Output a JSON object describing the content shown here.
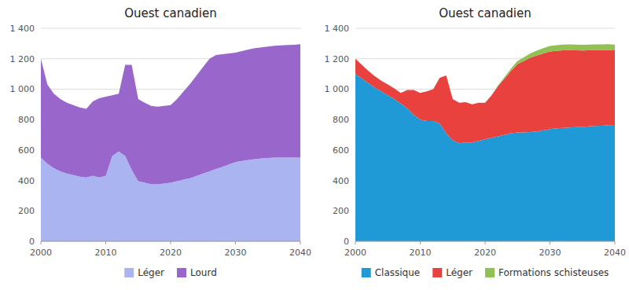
{
  "chart_data": [
    {
      "type": "area",
      "stacked": true,
      "title": "Ouest canadien",
      "x": [
        2000,
        2001,
        2002,
        2003,
        2004,
        2005,
        2006,
        2007,
        2008,
        2009,
        2010,
        2011,
        2012,
        2013,
        2014,
        2015,
        2016,
        2017,
        2018,
        2019,
        2020,
        2021,
        2022,
        2023,
        2024,
        2025,
        2026,
        2027,
        2028,
        2029,
        2030,
        2031,
        2032,
        2033,
        2034,
        2035,
        2036,
        2037,
        2038,
        2039,
        2040
      ],
      "series": [
        {
          "name": "Léger",
          "color": "#aab4f0",
          "values": [
            550,
            510,
            480,
            460,
            445,
            435,
            425,
            420,
            430,
            420,
            430,
            560,
            590,
            560,
            470,
            395,
            385,
            375,
            375,
            380,
            385,
            395,
            405,
            415,
            430,
            445,
            460,
            475,
            490,
            505,
            520,
            528,
            535,
            540,
            545,
            548,
            550,
            550,
            550,
            550,
            550
          ]
        },
        {
          "name": "Lourd",
          "color": "#9966cc",
          "values": [
            650,
            520,
            490,
            475,
            465,
            460,
            455,
            450,
            490,
            520,
            520,
            400,
            380,
            600,
            690,
            540,
            525,
            515,
            510,
            510,
            510,
            540,
            580,
            620,
            660,
            700,
            740,
            750,
            740,
            730,
            720,
            722,
            725,
            730,
            730,
            732,
            735,
            738,
            740,
            742,
            745
          ]
        }
      ],
      "xlim": [
        2000,
        2040
      ],
      "xticks": [
        2000,
        2010,
        2020,
        2030,
        2040
      ],
      "ylim": [
        0,
        1400
      ],
      "yticks": [
        0,
        200,
        400,
        600,
        800,
        {
          "value": 1000,
          "label": "1 000"
        },
        {
          "value": 1200,
          "label": "1 200"
        },
        {
          "value": 1400,
          "label": "1 400"
        }
      ],
      "grid": true,
      "legend": "bottom"
    },
    {
      "type": "area",
      "stacked": true,
      "title": "Ouest canadien",
      "x": [
        2000,
        2001,
        2002,
        2003,
        2004,
        2005,
        2006,
        2007,
        2008,
        2009,
        2010,
        2011,
        2012,
        2013,
        2014,
        2015,
        2016,
        2017,
        2018,
        2019,
        2020,
        2021,
        2022,
        2023,
        2024,
        2025,
        2026,
        2027,
        2028,
        2029,
        2030,
        2031,
        2032,
        2033,
        2034,
        2035,
        2036,
        2037,
        2038,
        2039,
        2040
      ],
      "series": [
        {
          "name": "Classique",
          "color": "#1f9ad6",
          "values": [
            1100,
            1070,
            1040,
            1010,
            985,
            960,
            935,
            905,
            875,
            830,
            800,
            790,
            790,
            775,
            710,
            665,
            645,
            650,
            650,
            660,
            670,
            680,
            690,
            700,
            710,
            715,
            715,
            718,
            722,
            730,
            738,
            742,
            745,
            748,
            750,
            752,
            755,
            758,
            760,
            763,
            765
          ]
        },
        {
          "name": "Léger",
          "color": "#e8413e",
          "values": [
            100,
            90,
            80,
            75,
            70,
            70,
            70,
            70,
            120,
            165,
            175,
            195,
            210,
            300,
            380,
            270,
            265,
            265,
            250,
            250,
            240,
            280,
            330,
            370,
            410,
            450,
            470,
            490,
            500,
            505,
            510,
            510,
            510,
            508,
            505,
            502,
            500,
            498,
            496,
            494,
            490
          ]
        },
        {
          "name": "Formations schisteuses",
          "color": "#92c153",
          "values": [
            0,
            0,
            0,
            0,
            0,
            0,
            0,
            0,
            0,
            0,
            0,
            0,
            0,
            0,
            0,
            0,
            0,
            0,
            0,
            0,
            0,
            0,
            5,
            10,
            15,
            20,
            25,
            28,
            32,
            34,
            36,
            37,
            38,
            38,
            38,
            38,
            38,
            38,
            38,
            38,
            38
          ]
        }
      ],
      "xlim": [
        2000,
        2040
      ],
      "xticks": [
        2000,
        2010,
        2020,
        2030,
        2040
      ],
      "ylim": [
        0,
        1400
      ],
      "yticks": [
        0,
        200,
        400,
        600,
        800,
        {
          "value": 1000,
          "label": "1 000"
        },
        {
          "value": 1200,
          "label": "1 200"
        },
        {
          "value": 1400,
          "label": "1 400"
        }
      ],
      "grid": true,
      "legend": "bottom"
    }
  ]
}
